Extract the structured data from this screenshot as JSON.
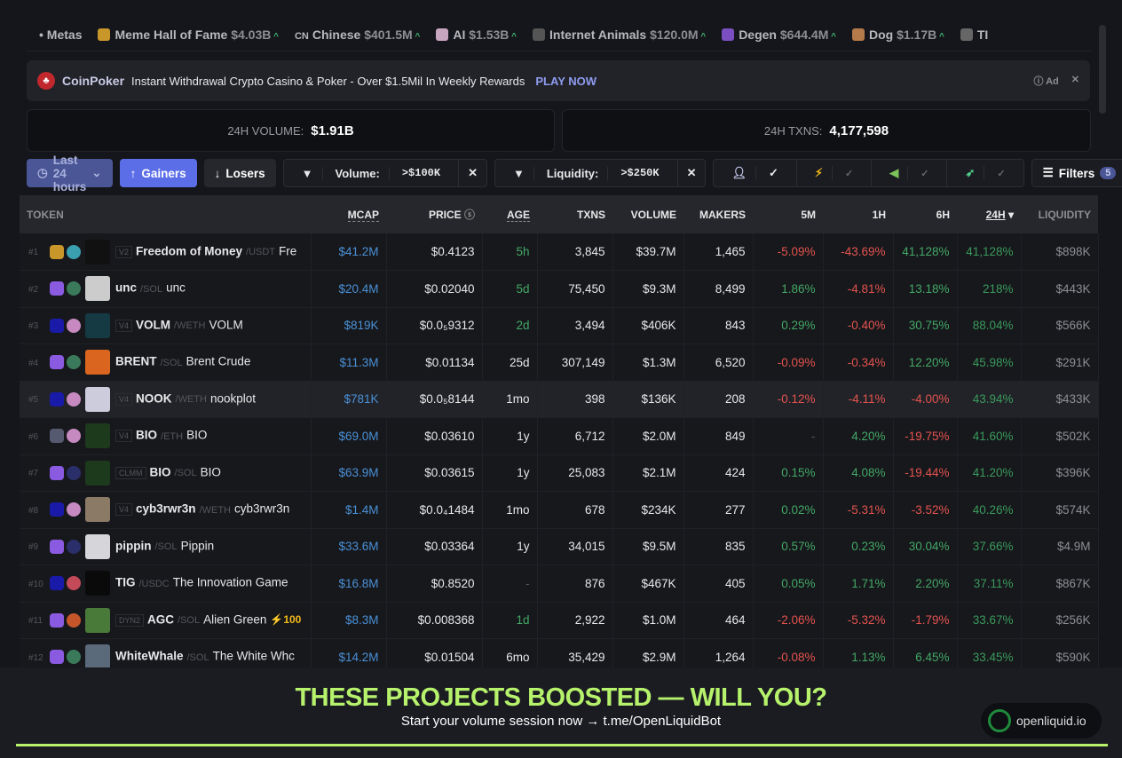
{
  "metas": {
    "label": "Metas",
    "items": [
      {
        "name": "Meme Hall of Fame",
        "value": "$4.03B",
        "color": "#c9962a"
      },
      {
        "name": "Chinese",
        "value": "$401.5M",
        "prefix": "CN"
      },
      {
        "name": "AI",
        "value": "$1.53B",
        "color": "#c9a6c0"
      },
      {
        "name": "Internet Animals",
        "value": "$120.0M",
        "color": "#555"
      },
      {
        "name": "Degen",
        "value": "$644.4M",
        "color": "#7b4fc2"
      },
      {
        "name": "Dog",
        "value": "$1.17B",
        "color": "#b57a4a"
      },
      {
        "name": "TI",
        "value": "",
        "color": "#666"
      }
    ]
  },
  "ad": {
    "brand": "CoinPoker",
    "text": "Instant Withdrawal Crypto Casino & Poker - Over $1.5Mil In Weekly Rewards",
    "cta": "PLAY NOW",
    "tag": "Ad",
    "close": "✕"
  },
  "stats": {
    "volume_label": "24H VOLUME:",
    "volume": "$1.91B",
    "txns_label": "24H TXNS:",
    "txns": "4,177,598"
  },
  "toolbar": {
    "time": "Last 24 hours",
    "gainers": "Gainers",
    "losers": "Losers",
    "vol_label": "Volume:",
    "vol_value": ">$100K",
    "liq_label": "Liquidity:",
    "liq_value": ">$250K",
    "clear": "✕",
    "filters": "Filters",
    "filters_count": "5"
  },
  "columns": [
    "TOKEN",
    "MCAP",
    "PRICE",
    "AGE",
    "TXNS",
    "VOLUME",
    "MAKERS",
    "5M",
    "1H",
    "6H",
    "24H",
    "LIQUIDITY"
  ],
  "rows": [
    {
      "rank": "#1",
      "c1": "#c9962a",
      "c2": "#3aa0b0",
      "av": "#111",
      "dex": "V2",
      "sym": "Freedom of Money",
      "quote": "USDT",
      "name": "Fre",
      "mcap": "$41.2M",
      "price": "$0.4123",
      "age": "5h",
      "ageNew": true,
      "txns": "3,845",
      "volume": "$39.7M",
      "makers": "1,465",
      "m5": "-5.09%",
      "h1": "-43.69%",
      "h6": "41,128%",
      "h24": "41,128%",
      "liq": "$898K"
    },
    {
      "rank": "#2",
      "c1": "#8a5ae0",
      "c2": "#3a7a5a",
      "av": "#ccc",
      "sym": "unc",
      "quote": "SOL",
      "name": "unc",
      "mcap": "$20.4M",
      "price": "$0.02040",
      "age": "5d",
      "ageNew": true,
      "txns": "75,450",
      "volume": "$9.3M",
      "makers": "8,499",
      "m5": "1.86%",
      "h1": "-4.81%",
      "h6": "13.18%",
      "h24": "218%",
      "liq": "$443K"
    },
    {
      "rank": "#3",
      "c1": "#1a1aa8",
      "c2": "#c78ac0",
      "av": "#153a44",
      "dex": "V4",
      "sym": "VOLM",
      "quote": "WETH",
      "name": "VOLM",
      "mcap": "$819K",
      "price": "$0.0₅9312",
      "age": "2d",
      "ageNew": true,
      "txns": "3,494",
      "volume": "$406K",
      "makers": "843",
      "m5": "0.29%",
      "h1": "-0.40%",
      "h6": "30.75%",
      "h24": "88.04%",
      "liq": "$566K"
    },
    {
      "rank": "#4",
      "c1": "#8a5ae0",
      "c2": "#3a7a5a",
      "av": "#d9651e",
      "sym": "BRENT",
      "quote": "SOL",
      "name": "Brent Crude",
      "mcap": "$11.3M",
      "price": "$0.01134",
      "age": "25d",
      "txns": "307,149",
      "volume": "$1.3M",
      "makers": "6,520",
      "m5": "-0.09%",
      "h1": "-0.34%",
      "h6": "12.20%",
      "h24": "45.98%",
      "liq": "$291K"
    },
    {
      "rank": "#5",
      "c1": "#1a1aa8",
      "c2": "#c78ac0",
      "av": "#ccd",
      "dex": "V4",
      "sym": "NOOK",
      "quote": "WETH",
      "name": "nookplot",
      "mcap": "$781K",
      "price": "$0.0₅8144",
      "age": "1mo",
      "txns": "398",
      "volume": "$136K",
      "makers": "208",
      "m5": "-0.12%",
      "h1": "-4.11%",
      "h6": "-4.00%",
      "h24": "43.94%",
      "liq": "$433K",
      "hl": true
    },
    {
      "rank": "#6",
      "c1": "#555a70",
      "c2": "#c78ac0",
      "av": "#1d3a1d",
      "dex": "V4",
      "sym": "BIO",
      "quote": "ETH",
      "name": "BIO",
      "mcap": "$69.0M",
      "price": "$0.03610",
      "age": "1y",
      "txns": "6,712",
      "volume": "$2.0M",
      "makers": "849",
      "m5": "-",
      "h1": "4.20%",
      "h6": "-19.75%",
      "h24": "41.60%",
      "liq": "$502K"
    },
    {
      "rank": "#7",
      "c1": "#8a5ae0",
      "c2": "#2a2f6a",
      "av": "#1d3a1d",
      "dex": "CLMM",
      "sym": "BIO",
      "quote": "SOL",
      "name": "BIO",
      "mcap": "$63.9M",
      "price": "$0.03615",
      "age": "1y",
      "txns": "25,083",
      "volume": "$2.1M",
      "makers": "424",
      "m5": "0.15%",
      "h1": "4.08%",
      "h6": "-19.44%",
      "h24": "41.20%",
      "liq": "$396K"
    },
    {
      "rank": "#8",
      "c1": "#1a1aa8",
      "c2": "#c78ac0",
      "av": "#8a7a66",
      "dex": "V4",
      "sym": "cyb3rwr3n",
      "quote": "WETH",
      "name": "cyb3rwr3n",
      "mcap": "$1.4M",
      "price": "$0.0₄1484",
      "age": "1mo",
      "txns": "678",
      "volume": "$234K",
      "makers": "277",
      "m5": "0.02%",
      "h1": "-5.31%",
      "h6": "-3.52%",
      "h24": "40.26%",
      "liq": "$574K"
    },
    {
      "rank": "#9",
      "c1": "#8a5ae0",
      "c2": "#2a2f6a",
      "av": "#d6d6da",
      "sym": "pippin",
      "quote": "SOL",
      "name": "Pippin",
      "mcap": "$33.6M",
      "price": "$0.03364",
      "age": "1y",
      "txns": "34,015",
      "volume": "$9.5M",
      "makers": "835",
      "m5": "0.57%",
      "h1": "0.23%",
      "h6": "30.04%",
      "h24": "37.66%",
      "liq": "$4.9M"
    },
    {
      "rank": "#10",
      "c1": "#1a1aa8",
      "c2": "#c44a5a",
      "av": "#0a0a0a",
      "sym": "TIG",
      "quote": "USDC",
      "name": "The Innovation Game",
      "mcap": "$16.8M",
      "price": "$0.8520",
      "age": "-",
      "txns": "876",
      "volume": "$467K",
      "makers": "405",
      "m5": "0.05%",
      "h1": "1.71%",
      "h6": "2.20%",
      "h24": "37.11%",
      "liq": "$867K"
    },
    {
      "rank": "#11",
      "c1": "#8a5ae0",
      "c2": "#c4562a",
      "av": "#4a7a3a",
      "dex": "DYN2",
      "sym": "AGC",
      "quote": "SOL",
      "name": "Alien Green",
      "boost": "⚡100",
      "mcap": "$8.3M",
      "price": "$0.008368",
      "age": "1d",
      "ageNew": true,
      "txns": "2,922",
      "volume": "$1.0M",
      "makers": "464",
      "m5": "-2.06%",
      "h1": "-5.32%",
      "h6": "-1.79%",
      "h24": "33.67%",
      "liq": "$256K"
    },
    {
      "rank": "#12",
      "c1": "#8a5ae0",
      "c2": "#3a7a5a",
      "av": "#5a6a7a",
      "sym": "WhiteWhale",
      "quote": "SOL",
      "name": "The White Whc",
      "mcap": "$14.2M",
      "price": "$0.01504",
      "age": "6mo",
      "txns": "35,429",
      "volume": "$2.9M",
      "makers": "1,264",
      "m5": "-0.08%",
      "h1": "1.13%",
      "h6": "6.45%",
      "h24": "33.45%",
      "liq": "$590K"
    }
  ],
  "footer": {
    "headline": "THESE PROJECTS BOOSTED — WILL YOU?",
    "sub": "Start your volume session now → t.me/OpenLiquidBot",
    "brand": "openliquid.io"
  }
}
